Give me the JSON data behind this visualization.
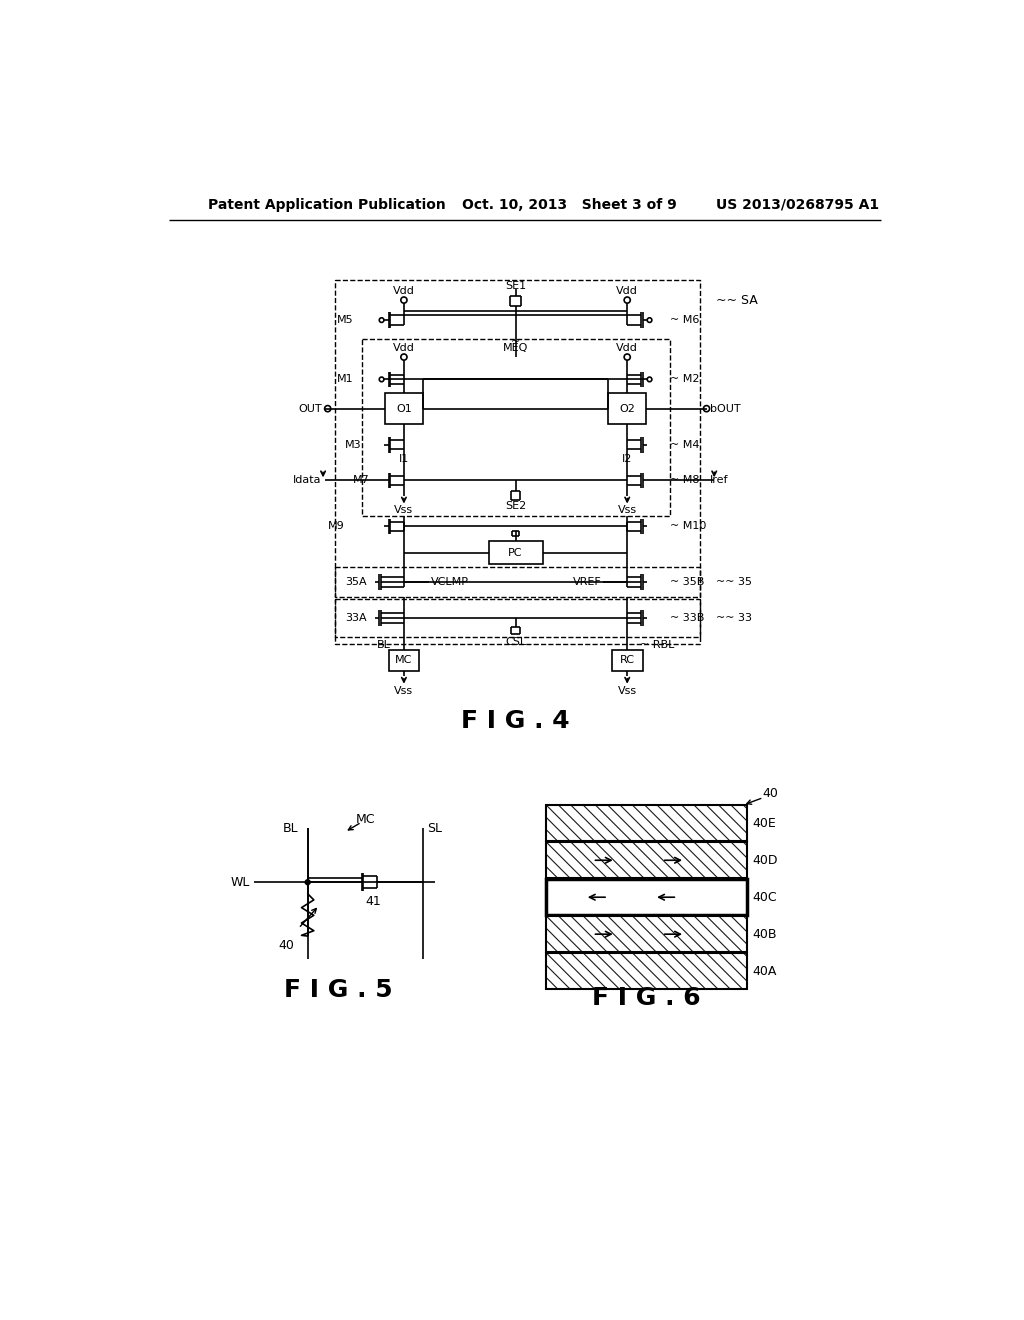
{
  "bg_color": "#ffffff",
  "text_color": "#000000",
  "header_left": "Patent Application Publication",
  "header_center": "Oct. 10, 2013   Sheet 3 of 9",
  "header_right": "US 2013/0268795 A1",
  "fig4_label": "F I G . 4",
  "fig5_label": "F I G . 5",
  "fig6_label": "F I G . 6"
}
